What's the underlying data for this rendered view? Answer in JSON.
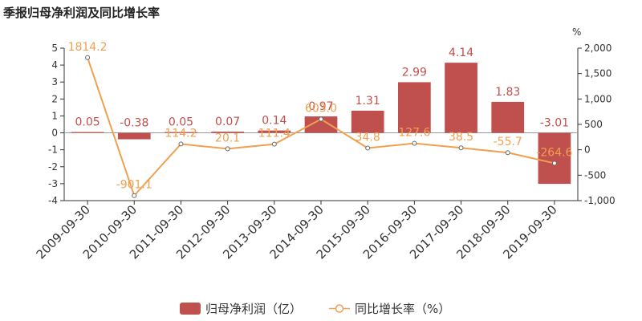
{
  "chart_data": {
    "type": "bar",
    "title": "季报归母净利润及同比增长率",
    "categories": [
      "2009-09-30",
      "2010-09-30",
      "2011-09-30",
      "2012-09-30",
      "2013-09-30",
      "2014-09-30",
      "2015-09-30",
      "2016-09-30",
      "2017-09-30",
      "2018-09-30",
      "2019-09-30"
    ],
    "series": [
      {
        "name": "归母净利润（亿）",
        "type": "bar",
        "axis": "left",
        "color": "#c0504d",
        "values": [
          0.05,
          -0.38,
          0.05,
          0.07,
          0.14,
          0.97,
          1.31,
          2.99,
          4.14,
          1.83,
          -3.01
        ],
        "labels": [
          "0.05",
          "-0.38",
          "0.05",
          "0.07",
          "0.14",
          "0.97",
          "1.31",
          "2.99",
          "4.14",
          "1.83",
          "-3.01"
        ]
      },
      {
        "name": "同比增长率（%）",
        "type": "line",
        "axis": "right",
        "color": "#f0a050",
        "values": [
          1814.2,
          -901.1,
          114.2,
          20.1,
          111.4,
          603.0,
          34.8,
          127.6,
          38.5,
          -55.7,
          -264.6
        ],
        "labels": [
          "1814.2",
          "-901.1",
          "114.2",
          "20.1",
          "111.4",
          "603.0",
          "34.8",
          "127.6",
          "38.5",
          "-55.7",
          "-264.6"
        ]
      }
    ],
    "y_left": {
      "min": -4,
      "max": 5,
      "ticks": [
        "5",
        "4",
        "3",
        "2",
        "1",
        "0",
        "-1",
        "-2",
        "-3",
        "-4"
      ]
    },
    "y_right": {
      "min": -1000,
      "max": 2000,
      "unit": "%",
      "ticks": [
        "2,000",
        "1,500",
        "1,000",
        "500",
        "0",
        "-500",
        "-1,000"
      ]
    },
    "grid": false,
    "legend_position": "bottom"
  }
}
